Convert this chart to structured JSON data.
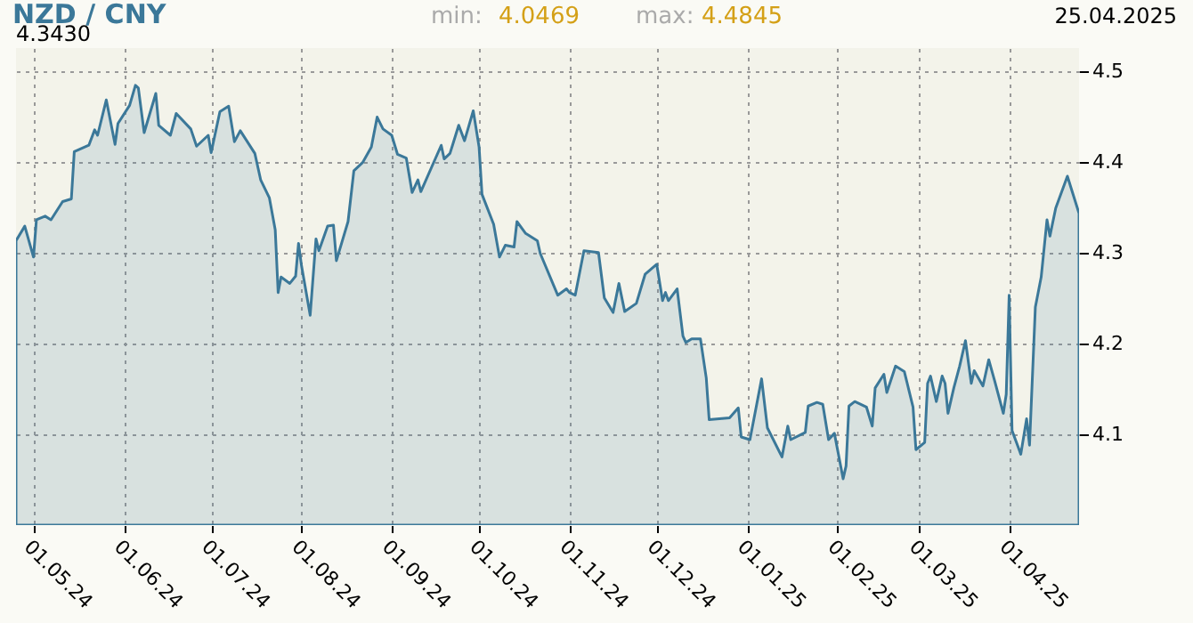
{
  "chart_data": {
    "type": "area",
    "title": "NZD / CNY",
    "annotations": [
      "4.3430",
      "min:",
      "4.0469",
      "max:",
      "4.4845",
      "25.04.2025"
    ],
    "x": [
      "2024-04-25",
      "2024-04-28",
      "2024-05-01",
      "2024-05-02",
      "2024-05-05",
      "2024-05-07",
      "2024-05-11",
      "2024-05-14",
      "2024-05-15",
      "2024-05-20",
      "2024-05-22",
      "2024-05-23",
      "2024-05-26",
      "2024-05-29",
      "2024-05-30",
      "2024-06-03",
      "2024-06-05",
      "2024-06-06",
      "2024-06-08",
      "2024-06-12",
      "2024-06-13",
      "2024-06-17",
      "2024-06-19",
      "2024-06-24",
      "2024-06-26",
      "2024-06-30",
      "2024-07-01",
      "2024-07-04",
      "2024-07-07",
      "2024-07-09",
      "2024-07-11",
      "2024-07-16",
      "2024-07-18",
      "2024-07-21",
      "2024-07-23",
      "2024-07-24",
      "2024-07-25",
      "2024-07-28",
      "2024-07-30",
      "2024-07-31",
      "2024-08-01",
      "2024-08-04",
      "2024-08-06",
      "2024-08-07",
      "2024-08-10",
      "2024-08-12",
      "2024-08-13",
      "2024-08-17",
      "2024-08-19",
      "2024-08-22",
      "2024-08-25",
      "2024-08-27",
      "2024-08-29",
      "2024-09-01",
      "2024-09-03",
      "2024-09-06",
      "2024-09-08",
      "2024-09-10",
      "2024-09-11",
      "2024-09-18",
      "2024-09-19",
      "2024-09-21",
      "2024-09-24",
      "2024-09-26",
      "2024-09-29",
      "2024-10-01",
      "2024-10-02",
      "2024-10-06",
      "2024-10-08",
      "2024-10-10",
      "2024-10-13",
      "2024-10-14",
      "2024-10-17",
      "2024-10-21",
      "2024-10-22",
      "2024-10-28",
      "2024-10-31",
      "2024-11-01",
      "2024-11-03",
      "2024-11-06",
      "2024-11-11",
      "2024-11-13",
      "2024-11-16",
      "2024-11-18",
      "2024-11-20",
      "2024-11-24",
      "2024-11-27",
      "2024-12-01",
      "2024-12-03",
      "2024-12-04",
      "2024-12-05",
      "2024-12-08",
      "2024-12-10",
      "2024-12-11",
      "2024-12-13",
      "2024-12-16",
      "2024-12-18",
      "2024-12-19",
      "2024-12-26",
      "2024-12-29",
      "2024-12-30",
      "2025-01-02",
      "2025-01-06",
      "2025-01-08",
      "2025-01-13",
      "2025-01-15",
      "2025-01-16",
      "2025-01-21",
      "2025-01-22",
      "2025-01-25",
      "2025-01-27",
      "2025-01-29",
      "2025-01-31",
      "2025-02-03",
      "2025-02-04",
      "2025-02-05",
      "2025-02-07",
      "2025-02-11",
      "2025-02-13",
      "2025-02-14",
      "2025-02-17",
      "2025-02-18",
      "2025-02-21",
      "2025-02-24",
      "2025-02-27",
      "2025-02-28",
      "2025-03-03",
      "2025-03-04",
      "2025-03-05",
      "2025-03-07",
      "2025-03-09",
      "2025-03-10",
      "2025-03-11",
      "2025-03-13",
      "2025-03-15",
      "2025-03-17",
      "2025-03-19",
      "2025-03-20",
      "2025-03-23",
      "2025-03-25",
      "2025-03-27",
      "2025-03-30",
      "2025-03-31",
      "2025-04-01",
      "2025-04-02",
      "2025-04-05",
      "2025-04-07",
      "2025-04-08",
      "2025-04-10",
      "2025-04-12",
      "2025-04-14",
      "2025-04-15",
      "2025-04-17",
      "2025-04-21",
      "2025-04-25"
    ],
    "series": [
      {
        "color": "#3b7899",
        "values": [
          4.313,
          4.329,
          4.295,
          4.336,
          4.34,
          4.336,
          4.356,
          4.359,
          4.411,
          4.418,
          4.435,
          4.429,
          4.468,
          4.419,
          4.442,
          4.462,
          4.484,
          4.481,
          4.432,
          4.475,
          4.44,
          4.429,
          4.453,
          4.436,
          4.417,
          4.429,
          4.41,
          4.455,
          4.461,
          4.422,
          4.434,
          4.409,
          4.38,
          4.36,
          4.325,
          4.256,
          4.273,
          4.266,
          4.274,
          4.31,
          4.286,
          4.231,
          4.315,
          4.302,
          4.329,
          4.33,
          4.291,
          4.334,
          4.39,
          4.399,
          4.416,
          4.449,
          4.436,
          4.429,
          4.408,
          4.404,
          4.366,
          4.38,
          4.367,
          4.418,
          4.403,
          4.409,
          4.44,
          4.423,
          4.456,
          4.416,
          4.364,
          4.331,
          4.295,
          4.308,
          4.306,
          4.334,
          4.321,
          4.313,
          4.299,
          4.253,
          4.26,
          4.256,
          4.253,
          4.302,
          4.3,
          4.25,
          4.234,
          4.266,
          4.235,
          4.244,
          4.276,
          4.287,
          4.247,
          4.256,
          4.247,
          4.26,
          4.208,
          4.201,
          4.205,
          4.205,
          4.162,
          4.116,
          4.118,
          4.129,
          4.097,
          4.094,
          4.161,
          4.107,
          4.075,
          4.109,
          4.094,
          4.102,
          4.131,
          4.135,
          4.133,
          4.094,
          4.101,
          4.051,
          4.065,
          4.131,
          4.136,
          4.13,
          4.109,
          4.151,
          4.166,
          4.146,
          4.175,
          4.169,
          4.13,
          4.083,
          4.091,
          4.156,
          4.164,
          4.136,
          4.164,
          4.156,
          4.123,
          4.151,
          4.175,
          4.203,
          4.156,
          4.17,
          4.153,
          4.182,
          4.159,
          4.123,
          4.144,
          4.253,
          4.104,
          4.078,
          4.117,
          4.088,
          4.24,
          4.273,
          4.336,
          4.318,
          4.349,
          4.384,
          4.343
        ]
      }
    ],
    "xlim": [
      "2024-04-25",
      "2025-04-25"
    ],
    "xticks": [
      {
        "value": "2024-05-01",
        "label": "01.05.24"
      },
      {
        "value": "2024-06-01",
        "label": "01.06.24"
      },
      {
        "value": "2024-07-01",
        "label": "01.07.24"
      },
      {
        "value": "2024-08-01",
        "label": "01.08.24"
      },
      {
        "value": "2024-09-01",
        "label": "01.09.24"
      },
      {
        "value": "2024-10-01",
        "label": "01.10.24"
      },
      {
        "value": "2024-11-01",
        "label": "01.11.24"
      },
      {
        "value": "2024-12-01",
        "label": "01.12.24"
      },
      {
        "value": "2025-01-01",
        "label": "01.01.25"
      },
      {
        "value": "2025-02-01",
        "label": "01.02.25"
      },
      {
        "value": "2025-03-01",
        "label": "01.03.25"
      },
      {
        "value": "2025-04-01",
        "label": "01.04.25"
      }
    ],
    "ylim": [
      4.0,
      4.525
    ],
    "yticks": [
      4.1,
      4.2,
      4.3,
      4.4,
      4.5
    ],
    "grid": true,
    "line_style": "solid"
  }
}
